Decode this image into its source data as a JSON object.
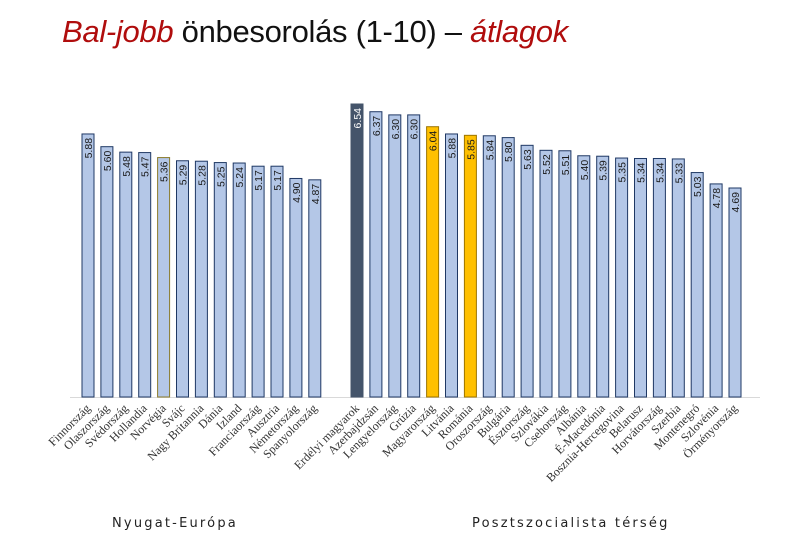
{
  "title": {
    "part1": "Bal-jobb",
    "part2": " önbesorolás (1-10) – ",
    "part3": "átlagok"
  },
  "colors": {
    "title_accent": "#b00d0d",
    "bar_default": "#b4c7e7",
    "bar_border": "#1f3864",
    "bar_highlight_dark": "#44546a",
    "bar_highlight_yellow": "#ffc000",
    "baseline": "#d9d9d9"
  },
  "chart_data": {
    "type": "bar",
    "title": "Bal-jobb önbesorolás (1-10) – átlagok",
    "xlabel": "",
    "ylabel": "",
    "ylim": [
      0,
      6.54
    ],
    "grid": false,
    "legend": "none",
    "groups": [
      {
        "name": "Nyugat-Európa",
        "categories": [
          "Finnország",
          "Olaszország",
          "Svédország",
          "Hollandia",
          "Norvégia",
          "Svájc",
          "Nagy Britannia",
          "Dánia",
          "Izland",
          "Franciaország",
          "Ausztria",
          "Németország",
          "Spanyolország"
        ],
        "values": [
          5.88,
          5.6,
          5.48,
          5.47,
          5.36,
          5.29,
          5.28,
          5.25,
          5.24,
          5.17,
          5.17,
          4.9,
          4.87
        ],
        "labels": [
          "5.88",
          "5.60",
          "5.48",
          "5.47",
          "5.36",
          "5.29",
          "5.28",
          "5.25",
          "5.24",
          "5.17",
          "5.17",
          "4.90",
          "4.87"
        ],
        "highlight": [
          "",
          "",
          "",
          "",
          "olive-border",
          "",
          "",
          "",
          "",
          "",
          "",
          "",
          ""
        ]
      },
      {
        "name": "Posztszocialista térség",
        "categories": [
          "Erdélyi magyarok",
          "Azerbajdzsán",
          "Lengyelország",
          "Grúzia",
          "Magyarország",
          "Litvánia",
          "Románia",
          "Oroszország",
          "Bulgária",
          "Észtország",
          "Szlovákia",
          "Csehország",
          "Albánia",
          "É-Macedónia",
          "Bosznia-Hercegovina",
          "Belarusz",
          "Horvátország",
          "Szerbia",
          "Montenegró",
          "Szlovénia",
          "Örményország"
        ],
        "values": [
          6.54,
          6.37,
          6.3,
          6.3,
          6.04,
          5.88,
          5.85,
          5.84,
          5.8,
          5.63,
          5.52,
          5.51,
          5.4,
          5.39,
          5.35,
          5.34,
          5.34,
          5.33,
          5.03,
          4.78,
          4.69
        ],
        "labels": [
          "6.54",
          "6.37",
          "6.30",
          "6.30",
          "6.04",
          "5.88",
          "5.85",
          "5.84",
          "5.80",
          "5.63",
          "5.52",
          "5.51",
          "5.40",
          "5.39",
          "5.35",
          "5.34",
          "5.34",
          "5.33",
          "5.03",
          "4.78",
          "4.69"
        ],
        "highlight": [
          "dark",
          "",
          "",
          "",
          "yellow",
          "",
          "yellow",
          "",
          "",
          "",
          "",
          "",
          "",
          "",
          "",
          "",
          "",
          "",
          "",
          "",
          ""
        ]
      }
    ]
  },
  "regions": {
    "west": "Nyugat-Európa",
    "east": "Posztszocialista térség"
  }
}
